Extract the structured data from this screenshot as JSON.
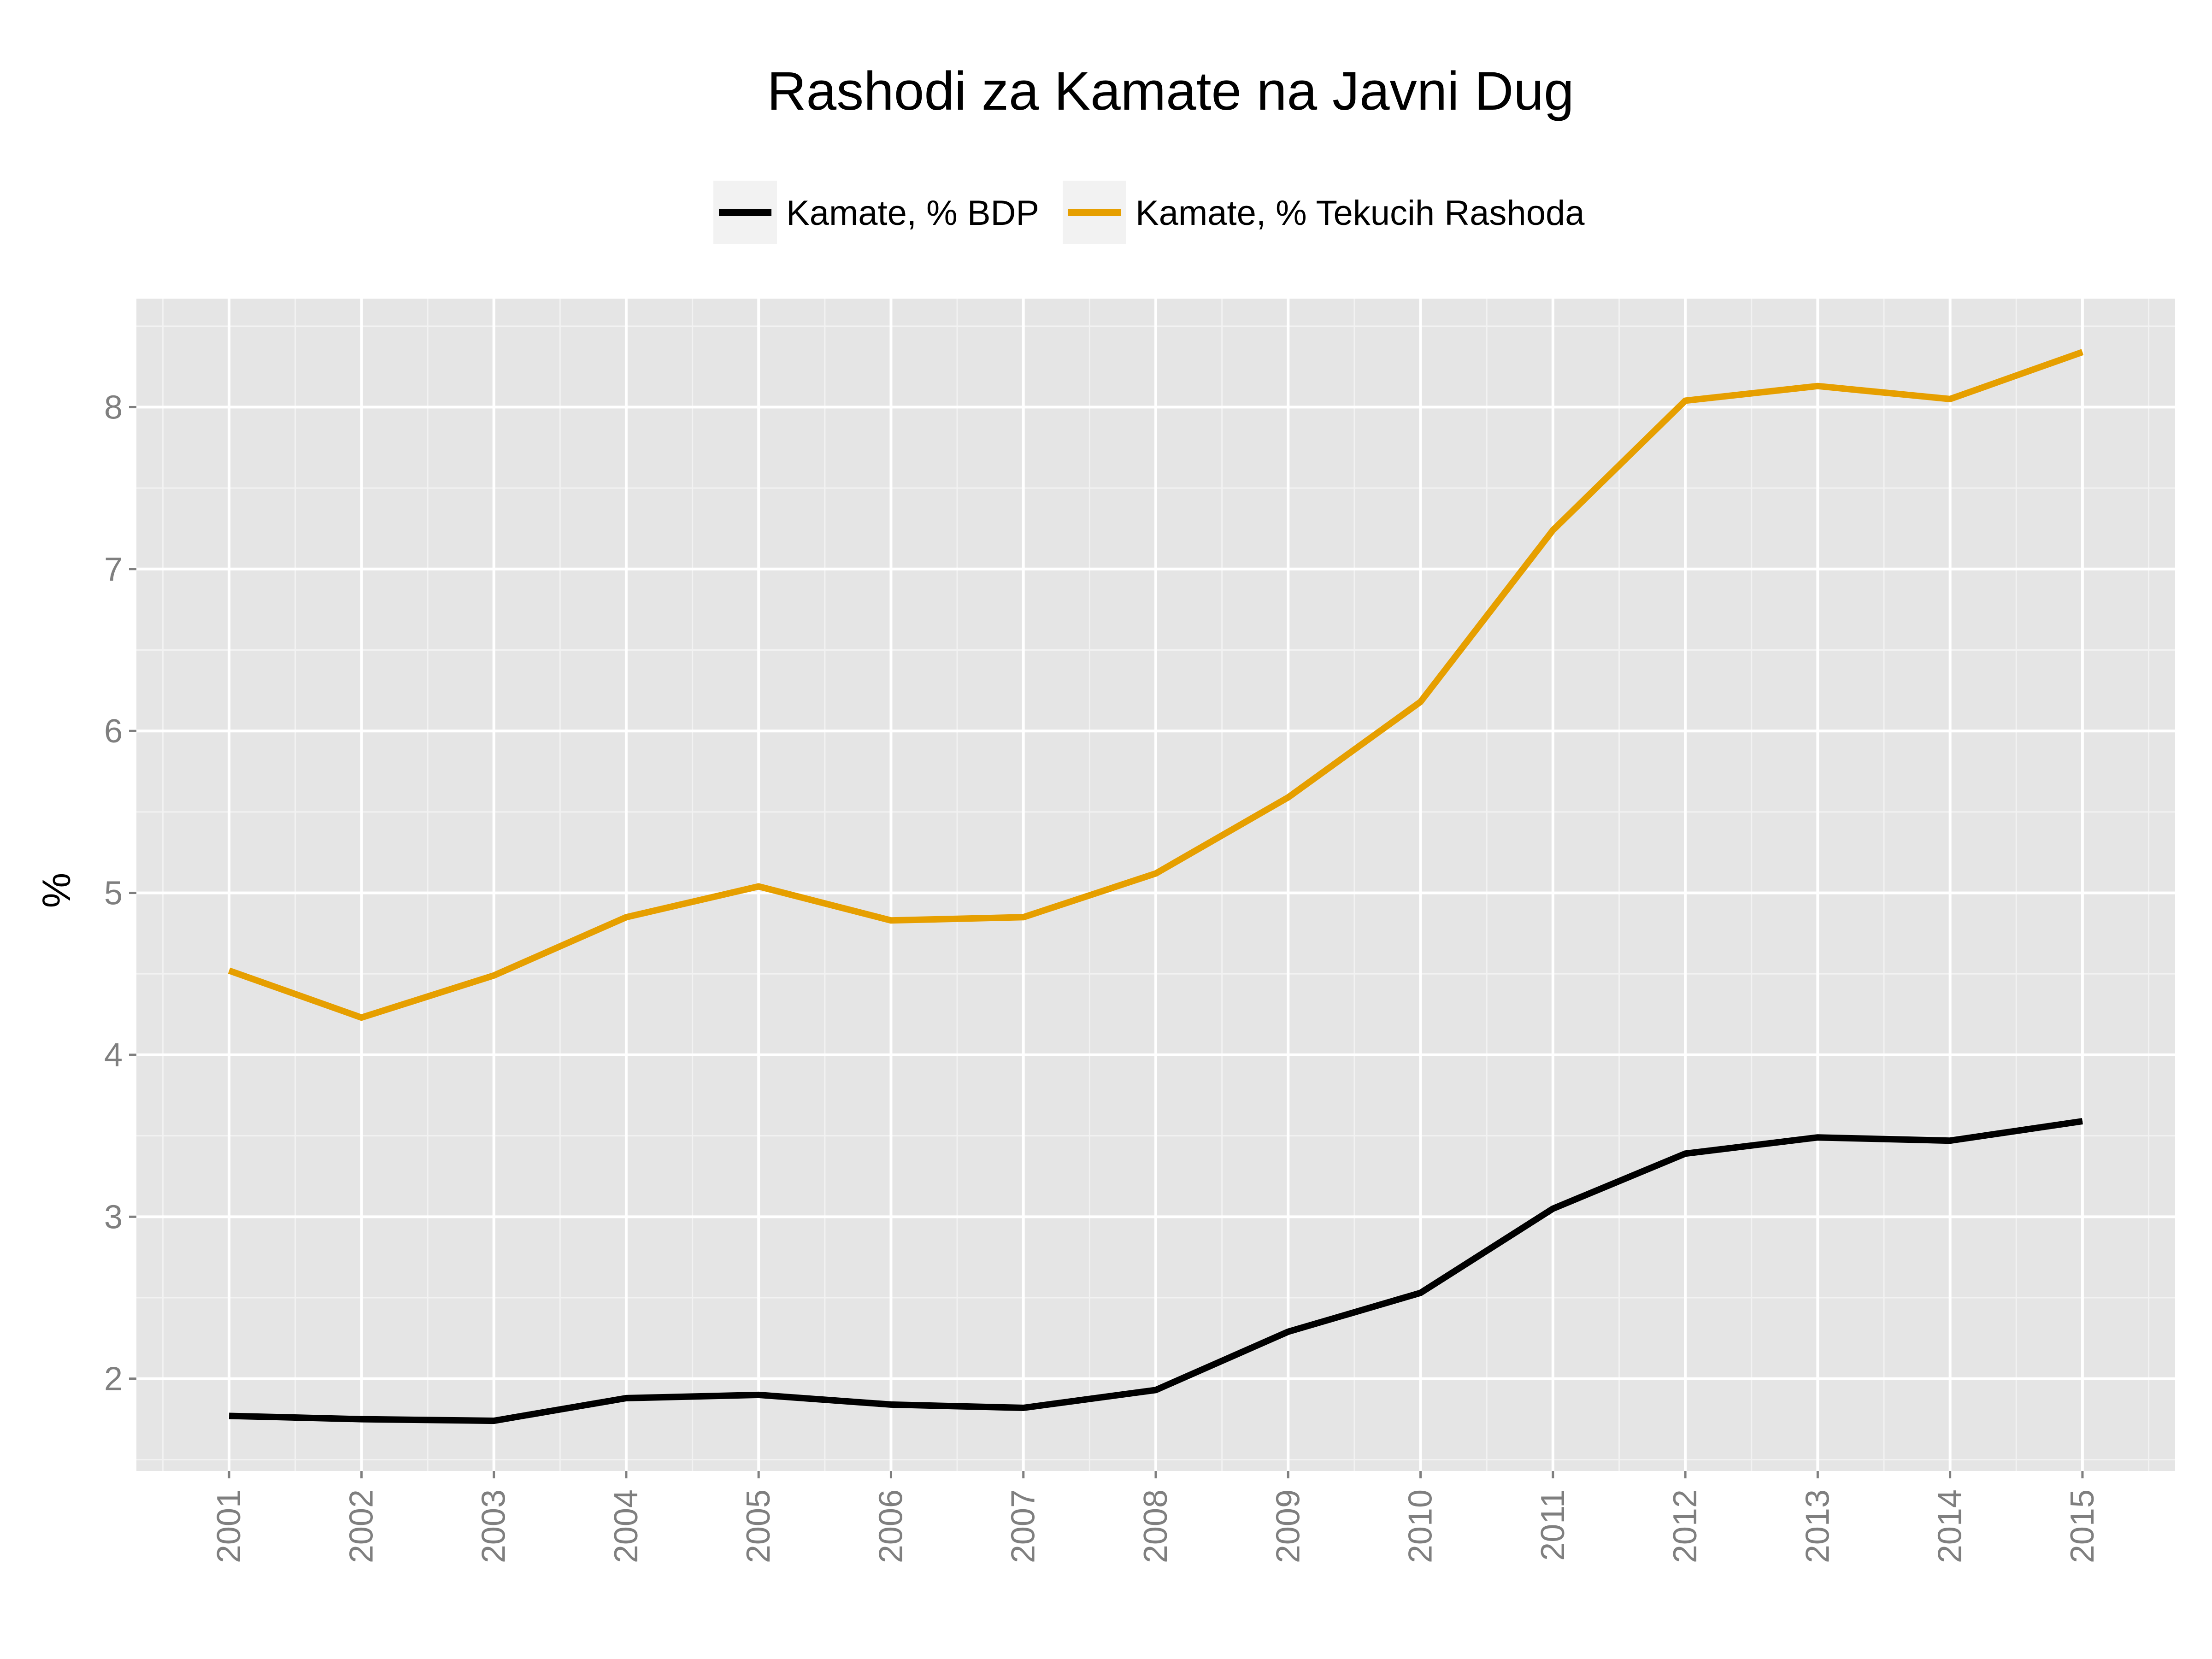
{
  "chart_data": {
    "type": "line",
    "title": "Rashodi za Kamate na Javni Dug",
    "xlabel": "",
    "ylabel": "%",
    "categories": [
      "2001",
      "2002",
      "2003",
      "2004",
      "2005",
      "2006",
      "2007",
      "2008",
      "2009",
      "2010",
      "2011",
      "2012",
      "2013",
      "2014",
      "2015"
    ],
    "yticks": [
      "2",
      "3",
      "4",
      "5",
      "6",
      "7",
      "8"
    ],
    "ylim": [
      1.43,
      8.67
    ],
    "grid": true,
    "legend_position": "top",
    "series": [
      {
        "name": "Kamate, % BDP",
        "color": "#000000",
        "values": [
          1.77,
          1.75,
          1.74,
          1.88,
          1.9,
          1.84,
          1.82,
          1.93,
          2.29,
          2.53,
          3.05,
          3.39,
          3.49,
          3.47,
          3.59
        ]
      },
      {
        "name": "Kamate, % Tekucih Rashoda",
        "color": "#E69F00",
        "values": [
          4.52,
          4.23,
          4.49,
          4.85,
          5.04,
          4.83,
          4.85,
          5.12,
          5.59,
          6.18,
          7.24,
          8.04,
          8.13,
          8.05,
          8.34
        ]
      }
    ]
  }
}
